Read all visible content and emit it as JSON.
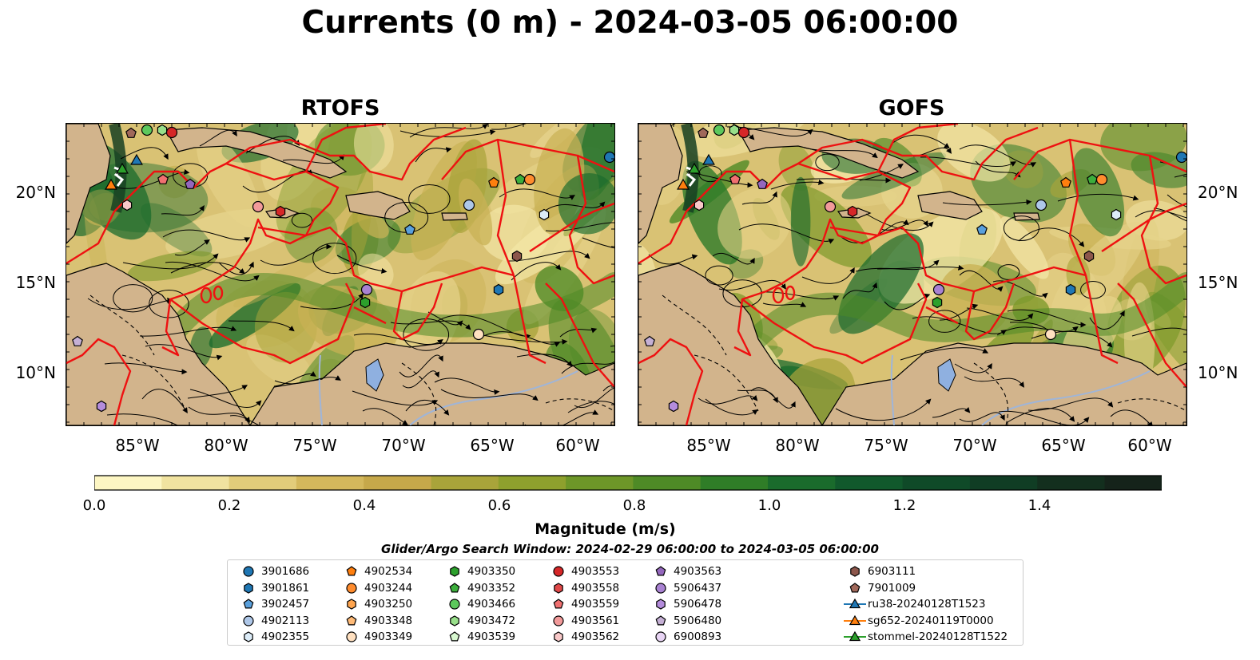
{
  "title": "Currents (0 m) - 2024-03-05 06:00:00",
  "panels": [
    {
      "title": "RTOFS"
    },
    {
      "title": "GOFS"
    }
  ],
  "lon_ticks": [
    "85°W",
    "80°W",
    "75°W",
    "70°W",
    "65°W",
    "60°W"
  ],
  "lat_ticks": [
    "20°N",
    "15°N",
    "10°N"
  ],
  "colorbar": {
    "label": "Magnitude (m/s)",
    "ticks": [
      "0.0",
      "0.2",
      "0.4",
      "0.6",
      "0.8",
      "1.0",
      "1.2",
      "1.4"
    ],
    "colors": [
      "#fdf6c3",
      "#f1e3a0",
      "#e2cc7a",
      "#d4b85c",
      "#c6a84a",
      "#a9a43a",
      "#8ea02d",
      "#6d9628",
      "#4e8a26",
      "#2f7d27",
      "#1a6b2c",
      "#11592c",
      "#0f4a28",
      "#103d24",
      "#132f1e",
      "#15231a"
    ],
    "extend": "max"
  },
  "search_window": "Glider/Argo Search Window: 2024-02-29 06:00:00 to 2024-03-05 06:00:00",
  "legend": [
    {
      "label": "3901686",
      "marker": "circle",
      "color": "#1f77b4"
    },
    {
      "label": "3901861",
      "marker": "hexagon",
      "color": "#1f77b4"
    },
    {
      "label": "3902457",
      "marker": "pentagon",
      "color": "#5aa0dc"
    },
    {
      "label": "4902113",
      "marker": "circle",
      "color": "#aec7e8"
    },
    {
      "label": "4902355",
      "marker": "hexagon",
      "color": "#dcecf8"
    },
    {
      "label": "4902534",
      "marker": "pentagon",
      "color": "#ff7f0e"
    },
    {
      "label": "4903244",
      "marker": "circle",
      "color": "#ff8c2e"
    },
    {
      "label": "4903250",
      "marker": "hexagon",
      "color": "#ffa54f"
    },
    {
      "label": "4903348",
      "marker": "pentagon",
      "color": "#ffbb78"
    },
    {
      "label": "4903349",
      "marker": "circle",
      "color": "#ffe0c0"
    },
    {
      "label": "4903350",
      "marker": "hexagon",
      "color": "#2ca02c"
    },
    {
      "label": "4903352",
      "marker": "pentagon",
      "color": "#3cae3c"
    },
    {
      "label": "4903466",
      "marker": "circle",
      "color": "#5cc85c"
    },
    {
      "label": "4903472",
      "marker": "hexagon",
      "color": "#98df8a"
    },
    {
      "label": "4903539",
      "marker": "pentagon",
      "color": "#d8f8d0"
    },
    {
      "label": "4903553",
      "marker": "circle",
      "color": "#d62728"
    },
    {
      "label": "4903558",
      "marker": "hexagon",
      "color": "#e04848"
    },
    {
      "label": "4903559",
      "marker": "pentagon",
      "color": "#f07070"
    },
    {
      "label": "4903561",
      "marker": "circle",
      "color": "#f29a9a"
    },
    {
      "label": "4903562",
      "marker": "hexagon",
      "color": "#f8c8c8"
    },
    {
      "label": "4903563",
      "marker": "pentagon",
      "color": "#9467bd"
    },
    {
      "label": "5906437",
      "marker": "circle",
      "color": "#a982d2"
    },
    {
      "label": "5906478",
      "marker": "hexagon",
      "color": "#b48cdc"
    },
    {
      "label": "5906480",
      "marker": "pentagon",
      "color": "#c5b0d5"
    },
    {
      "label": "6900893",
      "marker": "circle",
      "color": "#e8d4f4"
    },
    {
      "label": "6903111",
      "marker": "hexagon",
      "color": "#8c564b"
    },
    {
      "label": "7901009",
      "marker": "pentagon",
      "color": "#a0685a"
    },
    {
      "label": "ru38-20240128T1523",
      "marker": "line-triangle",
      "color": "#1f77b4"
    },
    {
      "label": "sg652-20240119T0000",
      "marker": "line-triangle",
      "color": "#ff7f0e"
    },
    {
      "label": "stommel-20240128T1522",
      "marker": "line-triangle",
      "color": "#2ca02c"
    }
  ]
}
